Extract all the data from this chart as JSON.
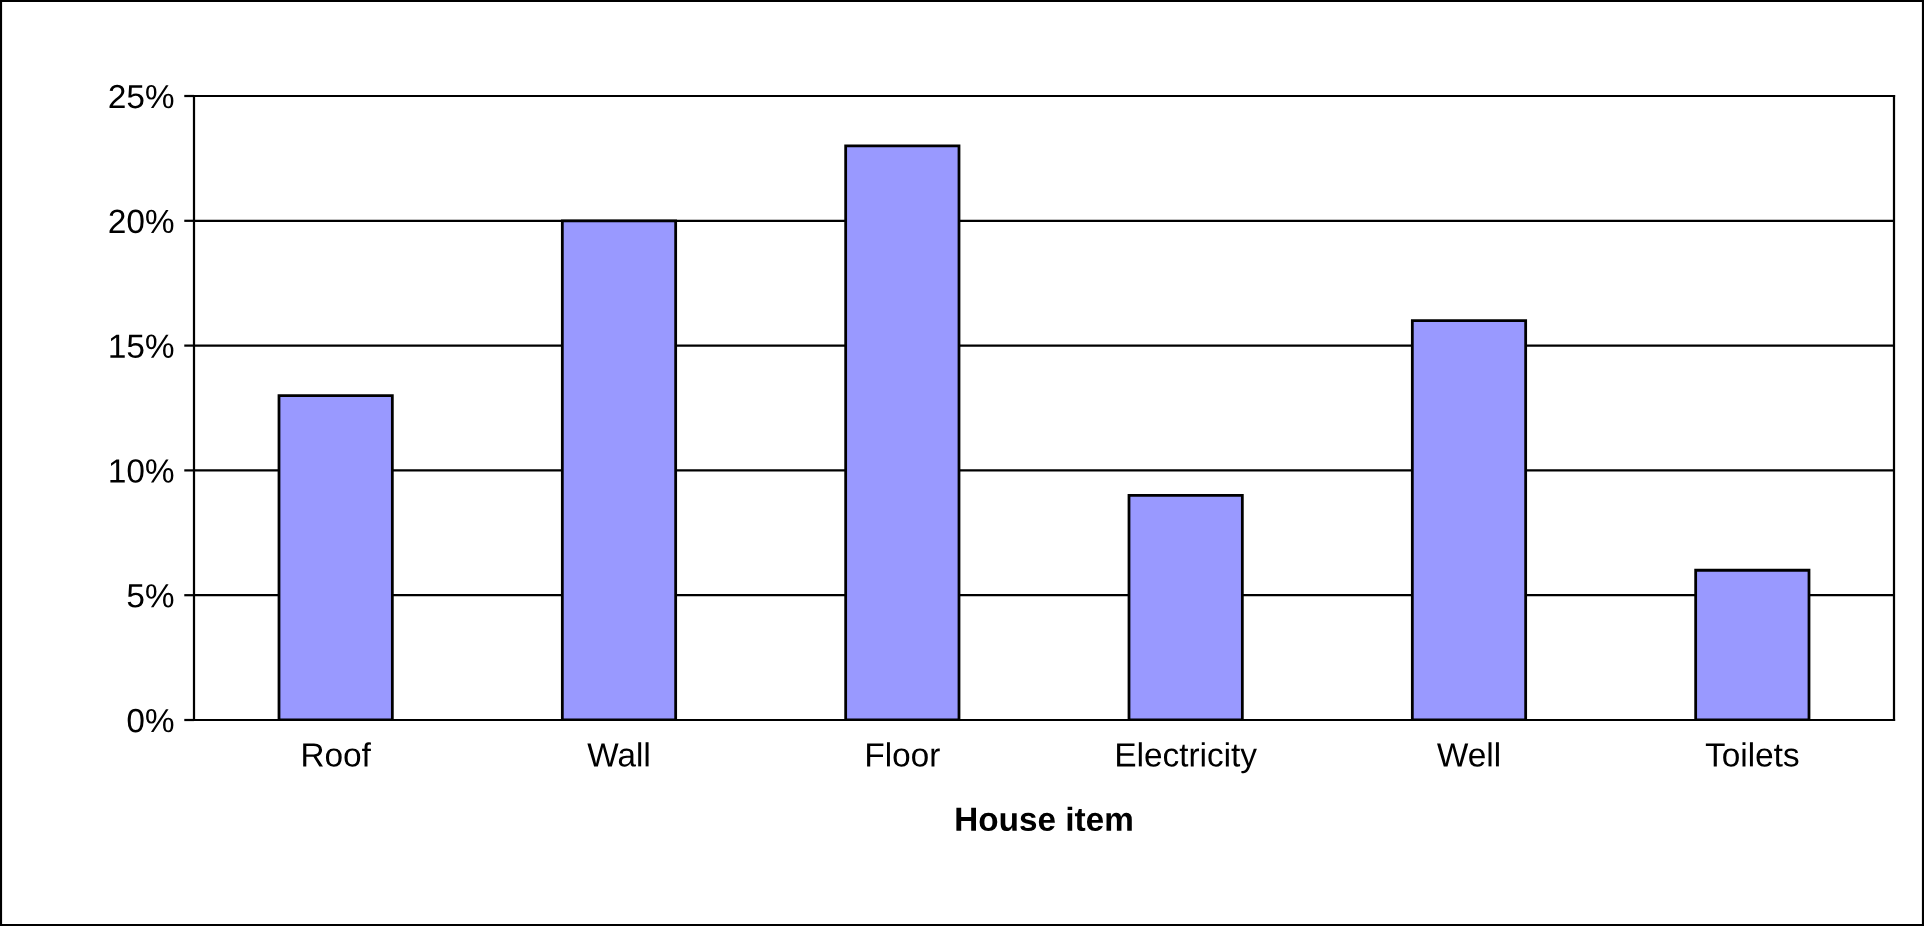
{
  "chart_data": {
    "type": "bar",
    "xlabel": "House item",
    "categories": [
      "Roof",
      "Wall",
      "Floor",
      "Electricity",
      "Well",
      "Toilets"
    ],
    "values": [
      13,
      20,
      23,
      9,
      16,
      6
    ],
    "color": "#9999ff",
    "ylim": [
      0,
      25
    ],
    "yticks": [
      {
        "value": 0,
        "label": "0%"
      },
      {
        "value": 5,
        "label": "5%"
      },
      {
        "value": 10,
        "label": "10%"
      },
      {
        "value": 15,
        "label": "15%"
      },
      {
        "value": 20,
        "label": "20%"
      },
      {
        "value": 25,
        "label": "25%"
      }
    ],
    "grid": "y"
  }
}
